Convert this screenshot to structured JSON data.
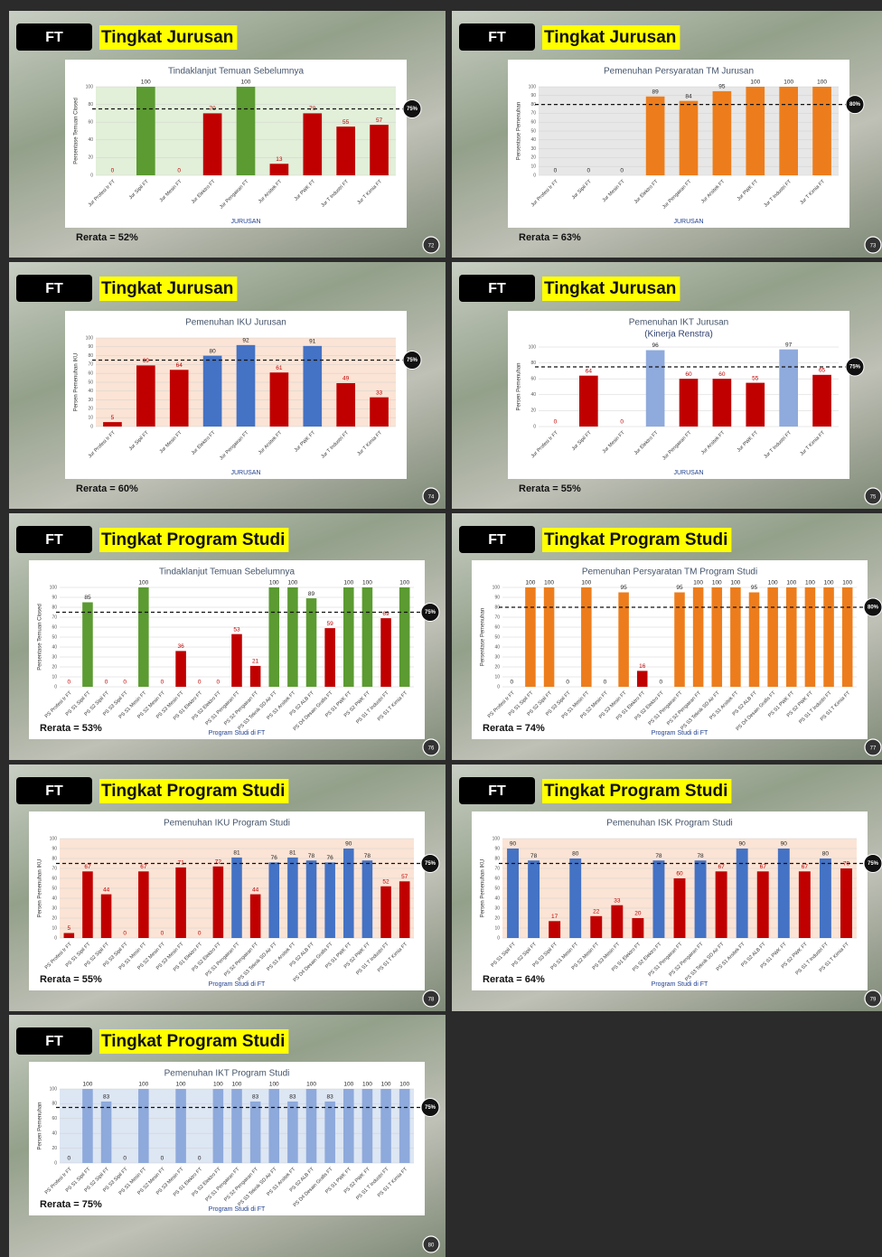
{
  "slides": [
    {
      "badge": "FT",
      "heading": "Tingkat Jurusan",
      "average": "Rerata = 52%",
      "page": "72"
    },
    {
      "badge": "FT",
      "heading": "Tingkat Jurusan",
      "average": "Rerata = 63%",
      "page": "73"
    },
    {
      "badge": "FT",
      "heading": "Tingkat Jurusan",
      "average": "Rerata = 60%",
      "page": "74"
    },
    {
      "badge": "FT",
      "heading": "Tingkat Jurusan",
      "average": "Rerata = 55%",
      "page": "75"
    },
    {
      "badge": "FT",
      "heading": "Tingkat Program Studi",
      "average": "Rerata = 53%",
      "page": "76"
    },
    {
      "badge": "FT",
      "heading": "Tingkat Program Studi",
      "average": "Rerata = 74%",
      "page": "77"
    },
    {
      "badge": "FT",
      "heading": "Tingkat Program Studi",
      "average": "Rerata = 55%",
      "page": "78"
    },
    {
      "badge": "FT",
      "heading": "Tingkat Program Studi",
      "average": "Rerata = 64%",
      "page": "79"
    },
    {
      "badge": "FT",
      "heading": "Tingkat Program Studi",
      "average": "Rerata = 75%",
      "page": "80"
    }
  ],
  "chart_data": [
    {
      "type": "bar",
      "title": "Tindaklanjut Temuan Sebelumnya",
      "y_label": "Persentase Temuan Closed",
      "x_label": "JURUSAN",
      "categories": [
        "Jur Profesi Ir FT",
        "Jur Sipil FT",
        "Jur Mesin FT",
        "Jur Elektro FT",
        "Jur Pengairan FT",
        "Jur Arsitek FT",
        "Jur PWK FT",
        "Jur T Industri FT",
        "Jur T Kimia FT"
      ],
      "values": [
        0,
        100,
        0,
        70,
        100,
        13,
        70,
        55,
        57
      ],
      "colors": [
        "#c00000",
        "#5b9b31",
        "#c00000",
        "#c00000",
        "#5b9b31",
        "#c00000",
        "#c00000",
        "#c00000",
        "#c00000"
      ],
      "plot_bg": "#e2efd9",
      "ylim": [
        0,
        100
      ],
      "yticks": [
        0,
        20,
        40,
        60,
        80,
        100
      ],
      "target": {
        "value": 75,
        "label": "75%"
      }
    },
    {
      "type": "bar",
      "title": "Pemenuhan Persyaratan TM Jurusan",
      "y_label": "Persentase Pemenuhan",
      "x_label": "JURUSAN",
      "categories": [
        "Jur Profesi Ir FT",
        "Jur Sipil FT",
        "Jur Mesin FT",
        "Jur Elektro FT",
        "Jur Pengairan FT",
        "Jur Arsitek FT",
        "Jur PWK FT",
        "Jur T Industri FT",
        "Jur T Kimia FT"
      ],
      "values": [
        0,
        0,
        0,
        89,
        84,
        95,
        100,
        100,
        100
      ],
      "color": "#ed7d1c",
      "plot_bg": "#e7e7e7",
      "ylim": [
        0,
        100
      ],
      "yticks": [
        0,
        10,
        20,
        30,
        40,
        50,
        60,
        70,
        80,
        90,
        100
      ],
      "target": {
        "value": 80,
        "label": "80%"
      }
    },
    {
      "type": "bar",
      "title": "Pemenuhan IKU Jurusan",
      "y_label": "Persen Pemenuhan IKU",
      "x_label": "JURUSAN",
      "categories": [
        "Jur Profesi Ir FT",
        "Jur Sipil FT",
        "Jur Mesin FT",
        "Jur Elektro FT",
        "Jur Pengairan FT",
        "Jur Arsitek FT",
        "Jur PWK FT",
        "Jur T Industri FT",
        "Jur T Kimia FT"
      ],
      "values": [
        5,
        69,
        64,
        80,
        92,
        61,
        91,
        49,
        33
      ],
      "colors": [
        "#c00000",
        "#c00000",
        "#c00000",
        "#4472c4",
        "#4472c4",
        "#c00000",
        "#4472c4",
        "#c00000",
        "#c00000"
      ],
      "plot_bg": "#fbe4d5",
      "ylim": [
        0,
        100
      ],
      "yticks": [
        0,
        10,
        20,
        30,
        40,
        50,
        60,
        70,
        80,
        90,
        100
      ],
      "target": {
        "value": 75,
        "label": "75%"
      }
    },
    {
      "type": "bar",
      "title": "Pemenuhan IKT Jurusan",
      "subtitle": "(Kinerja Renstra)",
      "y_label": "Persen Pemenuhan",
      "x_label": "JURUSAN",
      "categories": [
        "Jur Profesi Ir FT",
        "Jur Sipil FT",
        "Jur Mesin FT",
        "Jur Elektro FT",
        "Jur Pengairan FT",
        "Jur Arsitek FT",
        "Jur PWK FT",
        "Jur T Industri FT",
        "Jur T Kimia FT"
      ],
      "values": [
        0,
        64,
        0,
        96,
        60,
        60,
        55,
        97,
        65
      ],
      "colors": [
        "#c00000",
        "#c00000",
        "#c00000",
        "#8faadc",
        "#c00000",
        "#c00000",
        "#c00000",
        "#8faadc",
        "#c00000"
      ],
      "plot_bg": "#ffffff",
      "ylim": [
        0,
        100
      ],
      "yticks": [
        0,
        20,
        40,
        60,
        80,
        100
      ],
      "target": {
        "value": 75,
        "label": "75%"
      }
    },
    {
      "type": "bar",
      "title": "Tindaklanjut Temuan Sebelumnya",
      "y_label": "Persentase Temuan Closed",
      "x_label": "Program Studi di FT",
      "categories": [
        "PS Profesi Ir FT",
        "PS S1 Sipil FT",
        "PS S2 Sipil FT",
        "PS S3 Sipil FT",
        "PS S1 Mesin FT",
        "PS S2 Mesin FT",
        "PS S3 Mesin FT",
        "PS S1 Elektro FT",
        "PS S2 Elektro FT",
        "PS S1 Pengairan FT",
        "PS S2 Pengairan FT",
        "PS S3 Teknik SD Air FT",
        "PS S1 Arsitek FT",
        "PS S2 ALB FT",
        "PS D4 Desain Grafis FT",
        "PS S1 PWK FT",
        "PS S2 PWK FT",
        "PS S1 T Industri FT",
        "PS S1 T Kimia FT"
      ],
      "values": [
        0,
        85,
        0,
        0,
        100,
        0,
        36,
        0,
        0,
        53,
        21,
        100,
        100,
        89,
        59,
        100,
        100,
        69,
        100
      ],
      "colors": [
        "#c00000",
        "#5b9b31",
        "#c00000",
        "#c00000",
        "#5b9b31",
        "#c00000",
        "#c00000",
        "#c00000",
        "#c00000",
        "#c00000",
        "#c00000",
        "#5b9b31",
        "#5b9b31",
        "#5b9b31",
        "#c00000",
        "#5b9b31",
        "#5b9b31",
        "#c00000",
        "#5b9b31"
      ],
      "plot_bg": "#ffffff",
      "ylim": [
        0,
        100
      ],
      "yticks": [
        0,
        10,
        20,
        30,
        40,
        50,
        60,
        70,
        80,
        90,
        100
      ],
      "target": {
        "value": 75,
        "label": "75%"
      }
    },
    {
      "type": "bar",
      "title": "Pemenuhan Persyaratan TM Program Studi",
      "y_label": "Persentase Pemenuhan",
      "x_label": "Program Studi di FT",
      "categories": [
        "PS Profesi Ir FT",
        "PS S1 Sipil FT",
        "PS S2 Sipil FT",
        "PS S3 Sipil FT",
        "PS S1 Mesin FT",
        "PS S2 Mesin FT",
        "PS S3 Mesin FT",
        "PS S1 Elektro FT",
        "PS S2 Elektro FT",
        "PS S1 Pengairan FT",
        "PS S2 Pengairan FT",
        "PS S3 Teknik SD Air FT",
        "PS S1 Arsitek FT",
        "PS S2 ALB FT",
        "PS D4 Desain Grafis FT",
        "PS S1 PWK FT",
        "PS S2 PWK FT",
        "PS S1 T Industri FT",
        "PS S1 T Kimia FT"
      ],
      "values": [
        0,
        100,
        100,
        0,
        100,
        0,
        95,
        16,
        0,
        95,
        100,
        100,
        100,
        95,
        100,
        100,
        100,
        100,
        100
      ],
      "colors": [
        "#ed7d1c",
        "#ed7d1c",
        "#ed7d1c",
        "#ed7d1c",
        "#ed7d1c",
        "#ed7d1c",
        "#ed7d1c",
        "#c00000",
        "#ed7d1c",
        "#ed7d1c",
        "#ed7d1c",
        "#ed7d1c",
        "#ed7d1c",
        "#ed7d1c",
        "#ed7d1c",
        "#ed7d1c",
        "#ed7d1c",
        "#ed7d1c",
        "#ed7d1c"
      ],
      "plot_bg": "#ffffff",
      "ylim": [
        0,
        100
      ],
      "yticks": [
        0,
        10,
        20,
        30,
        40,
        50,
        60,
        70,
        80,
        90,
        100
      ],
      "target": {
        "value": 80,
        "label": "80%"
      }
    },
    {
      "type": "bar",
      "title": "Pemenuhan IKU Program Studi",
      "y_label": "Persen Pemenuhan IKU",
      "x_label": "Program Studi di FT",
      "categories": [
        "PS Profesi Ir FT",
        "PS S1 Sipil FT",
        "PS S2 Sipil FT",
        "PS S3 Sipil FT",
        "PS S1 Mesin FT",
        "PS S2 Mesin FT",
        "PS S3 Mesin FT",
        "PS S1 Elektro FT",
        "PS S2 Elektro FT",
        "PS S1 Pengairan FT",
        "PS S2 Pengairan FT",
        "PS S3 Teknik SD Air FT",
        "PS S1 Arsitek FT",
        "PS S2 ALB FT",
        "PS D4 Desain Grafis FT",
        "PS S1 PWK FT",
        "PS S2 PWK FT",
        "PS S1 T Industri FT",
        "PS S1 T Kimia FT"
      ],
      "values": [
        5,
        67,
        44,
        0,
        67,
        0,
        71,
        0,
        72,
        81,
        44,
        76,
        81,
        78,
        76,
        90,
        78,
        52,
        57
      ],
      "colors": [
        "#c00000",
        "#c00000",
        "#c00000",
        "#c00000",
        "#c00000",
        "#c00000",
        "#c00000",
        "#c00000",
        "#c00000",
        "#4472c4",
        "#c00000",
        "#4472c4",
        "#4472c4",
        "#4472c4",
        "#4472c4",
        "#4472c4",
        "#4472c4",
        "#c00000",
        "#c00000"
      ],
      "plot_bg": "#fbe4d5",
      "ylim": [
        0,
        100
      ],
      "yticks": [
        0,
        10,
        20,
        30,
        40,
        50,
        60,
        70,
        80,
        90,
        100
      ],
      "target": {
        "value": 75,
        "label": "75%"
      }
    },
    {
      "type": "bar",
      "title": "Pemenuhan ISK Program Studi",
      "y_label": "Persen Pemenuhan IKU",
      "x_label": "Program Studi di FT",
      "categories": [
        "PS S1 Sipil FT",
        "PS S2 Sipil FT",
        "PS S3 Sipil FT",
        "PS S1 Mesin FT",
        "PS S2 Mesin FT",
        "PS S3 Mesin FT",
        "PS S1 Elektro FT",
        "PS S2 Elektro FT",
        "PS S1 Pengairan FT",
        "PS S2 Pengairan FT",
        "PS S3 Teknik SD Air FT",
        "PS S1 Arsitek FT",
        "PS S2 ALB FT",
        "PS S1 PWK FT",
        "PS S2 PWK FT",
        "PS S1 T Industri FT",
        "PS S1 T Kimia FT"
      ],
      "values": [
        90,
        78,
        17,
        80,
        22,
        33,
        20,
        78,
        60,
        78,
        67,
        90,
        67,
        90,
        67,
        80,
        70
      ],
      "colors": [
        "#4472c4",
        "#4472c4",
        "#c00000",
        "#4472c4",
        "#c00000",
        "#c00000",
        "#c00000",
        "#4472c4",
        "#c00000",
        "#4472c4",
        "#c00000",
        "#4472c4",
        "#c00000",
        "#4472c4",
        "#c00000",
        "#4472c4",
        "#c00000"
      ],
      "plot_bg": "#fbe4d5",
      "ylim": [
        0,
        100
      ],
      "yticks": [
        0,
        10,
        20,
        30,
        40,
        50,
        60,
        70,
        80,
        90,
        100
      ],
      "target": {
        "value": 75,
        "label": "75%"
      }
    },
    {
      "type": "bar",
      "title": "Pemenuhan IKT Program Studi",
      "y_label": "Persen Pemenuhan",
      "x_label": "Program Studi di FT",
      "categories": [
        "PS Profesi Ir FT",
        "PS S1 Sipil FT",
        "PS S2 Sipil FT",
        "PS S3 Sipil FT",
        "PS S1 Mesin FT",
        "PS S2 Mesin FT",
        "PS S3 Mesin FT",
        "PS S1 Elektro FT",
        "PS S2 Elektro FT",
        "PS S1 Pengairan FT",
        "PS S2 Pengairan FT",
        "PS S3 Teknik SD Air FT",
        "PS S1 Arsitek FT",
        "PS S2 ALB FT",
        "PS D4 Desain Grafis FT",
        "PS S1 PWK FT",
        "PS S2 PWK FT",
        "PS S1 T Industri FT",
        "PS S1 T Kimia FT"
      ],
      "values": [
        0,
        100,
        83,
        0,
        100,
        0,
        100,
        0,
        100,
        100,
        83,
        100,
        83,
        100,
        83,
        100,
        100,
        100,
        100
      ],
      "color": "#8ea9db",
      "plot_bg": "#dde6f3",
      "ylim": [
        0,
        100
      ],
      "yticks": [
        0,
        20,
        40,
        60,
        80,
        100
      ],
      "target": {
        "value": 75,
        "label": "75%"
      }
    }
  ]
}
